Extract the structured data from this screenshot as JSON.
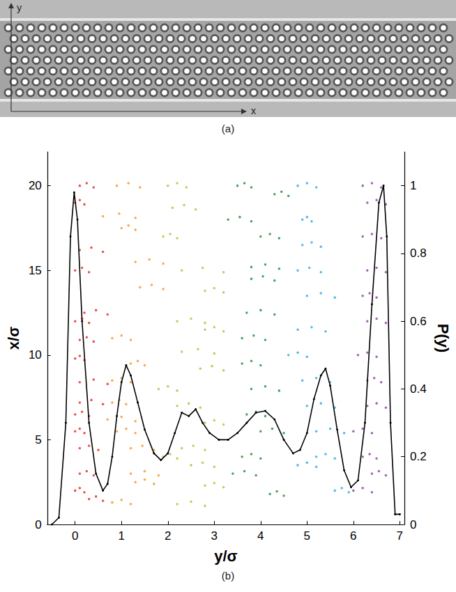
{
  "panel_a": {
    "caption": "(a)",
    "axis_labels": {
      "vertical": "y",
      "horizontal": "x"
    }
  },
  "chart_data": {
    "type": "scatter",
    "caption": "(b)",
    "xlabel": "y/σ",
    "ylabel": "x/σ",
    "y2label": "P(y)",
    "xlim": [
      -0.6,
      7.1
    ],
    "xticks": [
      0,
      1,
      2,
      3,
      4,
      5,
      6,
      7
    ],
    "ylim": [
      0,
      22
    ],
    "yticks": [
      0,
      5,
      10,
      15,
      20
    ],
    "y2lim": [
      0,
      1.1
    ],
    "y2ticks": [
      0,
      0.2,
      0.4,
      0.6,
      0.8,
      1
    ],
    "grid": false,
    "marker": "circle",
    "series": [
      {
        "color": "#e8251f",
        "x": [
          0.1,
          0.25,
          0.4,
          0,
          0.1,
          0.2,
          0.1,
          0.35,
          0.6,
          0,
          0.15,
          0.3,
          0.2,
          0.45,
          0.7,
          0,
          0.15,
          0.3,
          0.1,
          0.25,
          0.4,
          0,
          0.1,
          0.2,
          0.1,
          0.4,
          0.7,
          0.1,
          0.35,
          0.6,
          0,
          0.15,
          0.3,
          0,
          0.1,
          0.2,
          0.1,
          0.3,
          0.5,
          0.1,
          0.25,
          0.4,
          0.3,
          0.45,
          0.6,
          0,
          0.1,
          0.2
        ],
        "values": [
          20,
          20.15,
          19.9,
          19,
          19.15,
          18.9,
          16.2,
          16.35,
          16.1,
          15,
          15.15,
          14.9,
          12.5,
          12.65,
          12.4,
          12,
          12.15,
          11.9,
          10.9,
          11.05,
          10.8,
          9.8,
          9.95,
          9.7,
          8.4,
          8.55,
          8.3,
          7.2,
          7.35,
          7.1,
          6.5,
          6.65,
          6.4,
          5.5,
          5.65,
          5.4,
          4.5,
          4.65,
          4.4,
          3,
          3.15,
          2.9,
          1.5,
          1.65,
          1.4,
          2,
          2.15,
          1.9
        ]
      },
      {
        "color": "#f7941d",
        "x": [
          0.9,
          1.15,
          1.4,
          0.6,
          0.95,
          1.3,
          1,
          1.15,
          1.3,
          1.3,
          1.6,
          1.9,
          1.4,
          1.65,
          1.9,
          0.8,
          1,
          1.2,
          1.2,
          1.35,
          1.5,
          0.8,
          1,
          1.2,
          0.8,
          0.95,
          1.1,
          0.7,
          1,
          1.3,
          0.9,
          1.1,
          1.3,
          1.2,
          1.45,
          1.7,
          1.2,
          1.5,
          1.8,
          1.3,
          1.5,
          1.7,
          0.8,
          1,
          1.2
        ],
        "values": [
          20,
          20.15,
          19.9,
          18.2,
          18.35,
          18.1,
          17.5,
          17.65,
          17.4,
          15.5,
          15.65,
          15.4,
          14,
          14.15,
          13.9,
          11,
          11.15,
          10.9,
          9.5,
          9.65,
          9.4,
          8.5,
          8.65,
          8.4,
          7.2,
          7.35,
          7.1,
          6.2,
          6.35,
          6.1,
          5.5,
          5.65,
          5.4,
          4.5,
          4.65,
          4.4,
          3,
          3.15,
          2.9,
          2.5,
          2.65,
          2.4,
          1.3,
          1.45,
          1.2
        ]
      },
      {
        "color": "#9acd32",
        "x": [
          2,
          2.2,
          2.4,
          2.1,
          2.35,
          2.6,
          1.9,
          2.05,
          2.2,
          2.3,
          2.75,
          3.2,
          2.8,
          3,
          3.2,
          2.2,
          2.5,
          2.8,
          2.8,
          3,
          3.2,
          2.3,
          2.65,
          3,
          2.7,
          2.95,
          3.2,
          1.8,
          2,
          2.2,
          2.2,
          2.45,
          2.7,
          2.8,
          3,
          3.2,
          2.3,
          2.55,
          2.8,
          1.9,
          2.05,
          2.2,
          2.5,
          2.75,
          3,
          2.8,
          3,
          3.2,
          2.2,
          2.5,
          2.8
        ],
        "values": [
          20,
          20.15,
          19.9,
          18.7,
          18.85,
          18.6,
          17,
          17.15,
          16.9,
          15,
          15.15,
          14.9,
          13.8,
          13.95,
          13.7,
          12,
          12.15,
          11.9,
          11.5,
          11.65,
          11.4,
          10.2,
          10.35,
          10.1,
          9.2,
          9.35,
          9.1,
          8,
          8.15,
          7.9,
          7,
          7.15,
          6.9,
          6,
          6.15,
          5.9,
          4.5,
          4.65,
          4.4,
          4,
          4.15,
          3.9,
          3.5,
          3.65,
          3.4,
          2.3,
          2.45,
          2.2,
          1.2,
          1.35,
          1.1
        ]
      },
      {
        "color": "#1e8c3a",
        "x": [
          3.5,
          3.65,
          3.8,
          4.3,
          4.45,
          4.6,
          3.3,
          3.55,
          3.8,
          4,
          4.2,
          4.4,
          3.8,
          4.1,
          4.4,
          3.8,
          4.05,
          4.3,
          3.7,
          4,
          4.3,
          3.6,
          3.85,
          4.1,
          3.6,
          3.8,
          4,
          3.8,
          4.1,
          4.4,
          3.7,
          3.9,
          4.1,
          4,
          4.25,
          4.5,
          3.6,
          3.8,
          4,
          3.4,
          3.65,
          3.9,
          4.2,
          4.35,
          4.5
        ],
        "values": [
          20,
          20.15,
          19.9,
          19.5,
          19.65,
          19.4,
          18,
          18.15,
          17.9,
          17,
          17.15,
          16.9,
          15.2,
          15.35,
          15.1,
          14.5,
          14.65,
          14.4,
          12.5,
          12.65,
          12.4,
          11,
          11.15,
          10.9,
          9.5,
          9.65,
          9.4,
          8,
          8.15,
          7.9,
          6.5,
          6.65,
          6.4,
          5.5,
          5.65,
          5.4,
          4,
          4.15,
          3.9,
          3,
          3.15,
          2.9,
          1.8,
          1.95,
          1.7
        ]
      },
      {
        "color": "#29abe2",
        "x": [
          4.8,
          5,
          5.2,
          4.9,
          5,
          5.1,
          4.9,
          5.1,
          5.3,
          4.8,
          5.05,
          5.3,
          5,
          5.3,
          5.6,
          4.8,
          5.1,
          5.4,
          4.6,
          4.8,
          5,
          4.9,
          5.2,
          5.5,
          5,
          5.3,
          5.6,
          5.2,
          5.5,
          5.8,
          5.2,
          5.4,
          5.6,
          4.8,
          5,
          5.2,
          5.6,
          5.75,
          5.9
        ],
        "values": [
          20,
          20.15,
          19.9,
          18,
          18.15,
          17.9,
          16.5,
          16.65,
          16.4,
          15,
          15.15,
          14.9,
          13.5,
          13.65,
          13.4,
          11.5,
          11.65,
          11.4,
          10,
          10.15,
          9.9,
          8.5,
          8.65,
          8.4,
          7,
          7.15,
          6.9,
          5.5,
          5.65,
          5.4,
          4,
          4.15,
          3.9,
          3.5,
          3.65,
          3.4,
          2,
          2.15,
          1.9
        ]
      },
      {
        "color": "#8e3fa0",
        "x": [
          6.2,
          6.4,
          6.6,
          6.3,
          6.5,
          6.7,
          6.2,
          6.4,
          6.6,
          6.3,
          6.5,
          6.7,
          6.2,
          6.35,
          6.5,
          6.3,
          6.5,
          6.7,
          6.1,
          6.3,
          6.5,
          6.3,
          6.45,
          6.6,
          6.3,
          6.5,
          6.7,
          6,
          6.2,
          6.4,
          6.2,
          6.35,
          6.5,
          6.4,
          6.55,
          6.7,
          6,
          6.2,
          6.4
        ],
        "values": [
          20,
          20.15,
          19.9,
          19,
          19.15,
          18.9,
          17,
          17.15,
          16.9,
          15,
          15.15,
          14.9,
          13.5,
          13.65,
          13.4,
          12,
          12.15,
          11.9,
          10,
          10.15,
          9.9,
          8.5,
          8.65,
          8.4,
          7,
          7.15,
          6.9,
          5.5,
          5.65,
          5.4,
          4,
          4.15,
          3.9,
          3,
          3.15,
          2.9,
          2,
          2.15,
          1.9
        ]
      },
      {
        "type": "line",
        "axis": "y2",
        "color": "#000000",
        "marker": "circle",
        "line_style": "solid",
        "x": [
          -0.5,
          -0.35,
          -0.2,
          -0.1,
          -0.02,
          0.05,
          0.15,
          0.3,
          0.45,
          0.6,
          0.7,
          0.8,
          0.9,
          1.0,
          1.1,
          1.2,
          1.35,
          1.5,
          1.7,
          1.85,
          2.0,
          2.15,
          2.3,
          2.45,
          2.6,
          2.75,
          2.9,
          3.1,
          3.3,
          3.5,
          3.7,
          3.9,
          4.1,
          4.3,
          4.5,
          4.7,
          4.85,
          5.0,
          5.15,
          5.3,
          5.4,
          5.5,
          5.65,
          5.8,
          5.95,
          6.1,
          6.25,
          6.4,
          6.55,
          6.65,
          6.72,
          6.8,
          6.9,
          7.0
        ],
        "values": [
          0,
          0.02,
          0.3,
          0.85,
          0.98,
          0.9,
          0.6,
          0.3,
          0.15,
          0.1,
          0.12,
          0.2,
          0.32,
          0.42,
          0.47,
          0.44,
          0.36,
          0.28,
          0.21,
          0.19,
          0.21,
          0.27,
          0.33,
          0.32,
          0.34,
          0.3,
          0.27,
          0.25,
          0.25,
          0.27,
          0.3,
          0.33,
          0.335,
          0.31,
          0.25,
          0.21,
          0.22,
          0.27,
          0.37,
          0.44,
          0.46,
          0.41,
          0.28,
          0.16,
          0.11,
          0.13,
          0.3,
          0.65,
          0.95,
          1.0,
          0.85,
          0.3,
          0.03,
          0.03
        ]
      }
    ]
  }
}
